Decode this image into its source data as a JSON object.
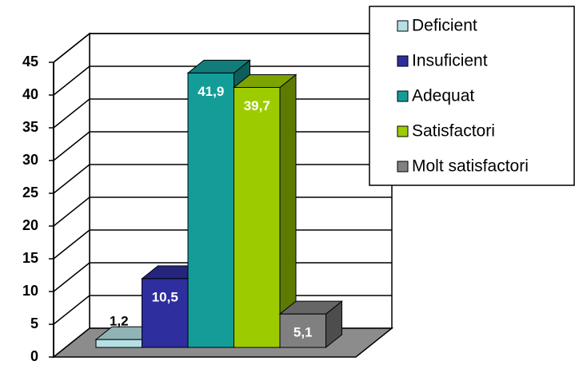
{
  "chart_data": {
    "type": "bar3d",
    "categories": [
      null
    ],
    "series": [
      {
        "name": "Deficient",
        "color": "#b4e0e4",
        "values": [
          1.2
        ],
        "value_labels": [
          "1,2"
        ]
      },
      {
        "name": "Insuficient",
        "color": "#2e2e9e",
        "values": [
          10.5
        ],
        "value_labels": [
          "10,5"
        ]
      },
      {
        "name": "Adequat",
        "color": "#149c98",
        "values": [
          41.9
        ],
        "value_labels": [
          "41,9"
        ]
      },
      {
        "name": "Satisfactori",
        "color": "#9ccc00",
        "values": [
          39.7
        ],
        "value_labels": [
          "39,7"
        ]
      },
      {
        "name": "Molt satisfactori",
        "color": "#808080",
        "values": [
          5.1
        ],
        "value_labels": [
          "5,1"
        ]
      }
    ],
    "ylim": [
      0,
      45
    ],
    "yticks": [
      0,
      5,
      10,
      15,
      20,
      25,
      30,
      35,
      40,
      45
    ],
    "grid": true,
    "legend": "top-right"
  }
}
